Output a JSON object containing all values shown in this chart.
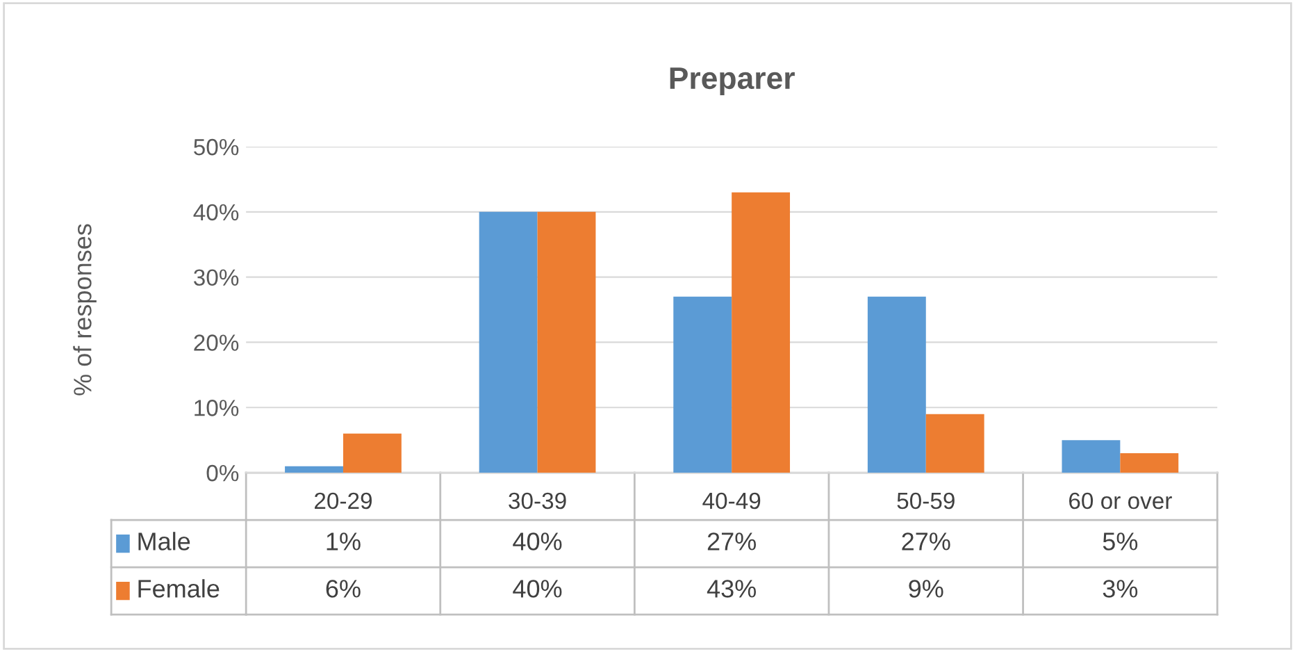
{
  "chart_data": {
    "type": "bar",
    "title": "Preparer",
    "ylabel": "% of responses",
    "categories": [
      "20-29",
      "30-39",
      "40-49",
      "50-59",
      "60 or over"
    ],
    "series": [
      {
        "name": "Male",
        "color": "#5b9bd5",
        "values": [
          1,
          40,
          27,
          27,
          5
        ],
        "value_labels": [
          "1%",
          "40%",
          "27%",
          "27%",
          "5%"
        ]
      },
      {
        "name": "Female",
        "color": "#ed7d31",
        "values": [
          6,
          40,
          43,
          9,
          3
        ],
        "value_labels": [
          "6%",
          "40%",
          "43%",
          "9%",
          "3%"
        ]
      }
    ],
    "ylim": [
      0,
      50
    ],
    "yticks": [
      {
        "value": 0,
        "label": "0%"
      },
      {
        "value": 10,
        "label": "10%"
      },
      {
        "value": 20,
        "label": "20%"
      },
      {
        "value": 30,
        "label": "30%"
      },
      {
        "value": 40,
        "label": "40%"
      },
      {
        "value": 50,
        "label": "50%"
      }
    ],
    "grid": "y",
    "legend": "bottom"
  }
}
